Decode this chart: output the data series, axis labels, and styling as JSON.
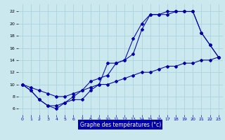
{
  "title": "Graphe des températures (°c)",
  "background_color": "#cce8ef",
  "grid_color": "#aad4de",
  "line_color": "#0000aa",
  "xlabel_bg": "#0000aa",
  "xlabel_fg": "#ffffff",
  "x_ticks": [
    0,
    1,
    2,
    3,
    4,
    5,
    6,
    7,
    8,
    9,
    10,
    11,
    12,
    13,
    14,
    15,
    16,
    17,
    18,
    19,
    20,
    21,
    22,
    23
  ],
  "y_ticks": [
    6,
    8,
    10,
    12,
    14,
    16,
    18,
    20,
    22
  ],
  "xlim": [
    -0.5,
    23.5
  ],
  "ylim": [
    5.0,
    23.2
  ],
  "line1_x": [
    0,
    1,
    2,
    3,
    4,
    5,
    6,
    7,
    8,
    9,
    10,
    11,
    12,
    13,
    14,
    15,
    16,
    17,
    18,
    19,
    20,
    21,
    22,
    23
  ],
  "line1_y": [
    10.0,
    9.0,
    7.5,
    6.5,
    6.5,
    7.0,
    8.0,
    9.0,
    10.5,
    11.0,
    11.5,
    13.5,
    14.0,
    17.5,
    20.0,
    21.5,
    21.5,
    22.0,
    22.0,
    22.0,
    22.0,
    18.5,
    16.5,
    14.5
  ],
  "line2_x": [
    0,
    1,
    2,
    3,
    4,
    5,
    6,
    7,
    8,
    9,
    10,
    11,
    12,
    13,
    14,
    15,
    16,
    17,
    18,
    19,
    20,
    21,
    22,
    23
  ],
  "line2_y": [
    10.0,
    9.0,
    7.5,
    6.5,
    6.0,
    7.0,
    7.5,
    7.5,
    9.0,
    10.0,
    13.5,
    13.5,
    14.0,
    15.0,
    19.0,
    21.5,
    21.5,
    21.5,
    22.0,
    22.0,
    22.0,
    18.5,
    16.5,
    14.5
  ],
  "line3_x": [
    0,
    1,
    2,
    3,
    4,
    5,
    6,
    7,
    8,
    9,
    10,
    11,
    12,
    13,
    14,
    15,
    16,
    17,
    18,
    19,
    20,
    21,
    22,
    23
  ],
  "line3_y": [
    10.0,
    9.5,
    9.0,
    8.5,
    8.0,
    8.0,
    8.5,
    9.0,
    9.5,
    10.0,
    10.0,
    10.5,
    11.0,
    11.5,
    12.0,
    12.0,
    12.5,
    13.0,
    13.0,
    13.5,
    13.5,
    14.0,
    14.0,
    14.5
  ]
}
